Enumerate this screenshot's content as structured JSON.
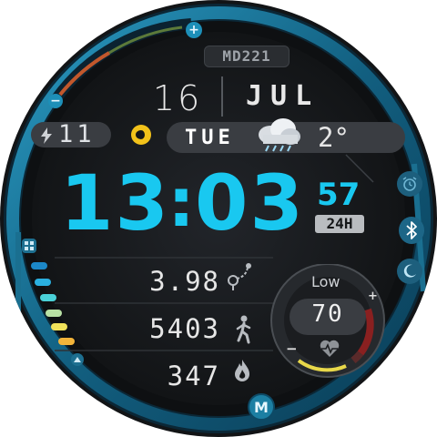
{
  "brand": {
    "model": "MD221",
    "logo_letter": "M"
  },
  "date": {
    "day": "16",
    "month": "JUL",
    "weekday": "TUE"
  },
  "battery": {
    "value": "11",
    "icon": "lightning-icon"
  },
  "weather": {
    "temperature": "2°",
    "icon": "cloud-snow-icon"
  },
  "time": {
    "hour": "13",
    "separator": ":",
    "minute": "03",
    "seconds": "57",
    "format": "24H"
  },
  "stats": {
    "distance": {
      "value": "3.98",
      "icon": "route-icon"
    },
    "steps": {
      "value": "5403",
      "icon": "walking-person-icon"
    },
    "calories": {
      "value": "347",
      "icon": "flame-icon"
    }
  },
  "heart": {
    "label": "Low",
    "value": "70",
    "icon": "heart-rate-icon"
  },
  "controls": {
    "plus": "+",
    "minus": "−"
  },
  "colors": {
    "accent": "#19c8f0",
    "bezel": "#1c7fa3",
    "heart_yellow": "#e8d84a",
    "heart_red": "#b02a2a"
  }
}
